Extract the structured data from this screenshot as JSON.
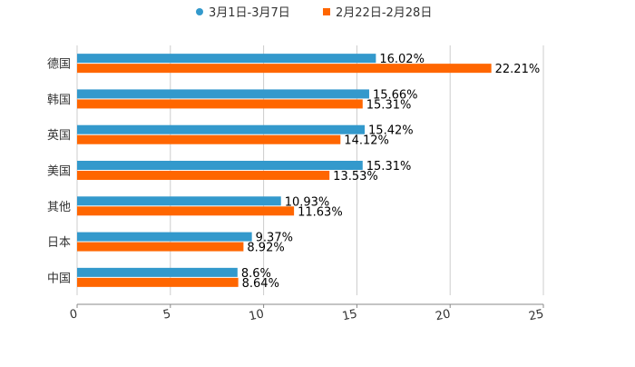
{
  "chart_data": {
    "type": "bar",
    "orientation": "horizontal",
    "categories": [
      "德国",
      "韩国",
      "英国",
      "美国",
      "其他",
      "日本",
      "中国"
    ],
    "series": [
      {
        "name": "3月1日-3月7日",
        "color": "#3399cc",
        "values": [
          16.02,
          15.66,
          15.42,
          15.31,
          10.93,
          9.37,
          8.6
        ],
        "labels": [
          "16.02%",
          "15.66%",
          "15.42%",
          "15.31%",
          "10.93%",
          "9.37%",
          "8.6%"
        ]
      },
      {
        "name": "2月22日-2月28日",
        "color": "#ff6600",
        "values": [
          22.21,
          15.31,
          14.12,
          13.53,
          11.63,
          8.92,
          8.64
        ],
        "labels": [
          "22.21%",
          "15.31%",
          "14.12%",
          "13.53%",
          "11.63%",
          "8.92%",
          "8.64%"
        ]
      }
    ],
    "xlim": [
      0,
      25
    ],
    "xticks": [
      0,
      5,
      10,
      15,
      20,
      25
    ],
    "xtick_labels": [
      "0",
      "5",
      "10",
      "15",
      "20",
      "25"
    ],
    "grid": true,
    "legend_position": "top-center",
    "title": "",
    "xlabel": "",
    "ylabel": ""
  }
}
